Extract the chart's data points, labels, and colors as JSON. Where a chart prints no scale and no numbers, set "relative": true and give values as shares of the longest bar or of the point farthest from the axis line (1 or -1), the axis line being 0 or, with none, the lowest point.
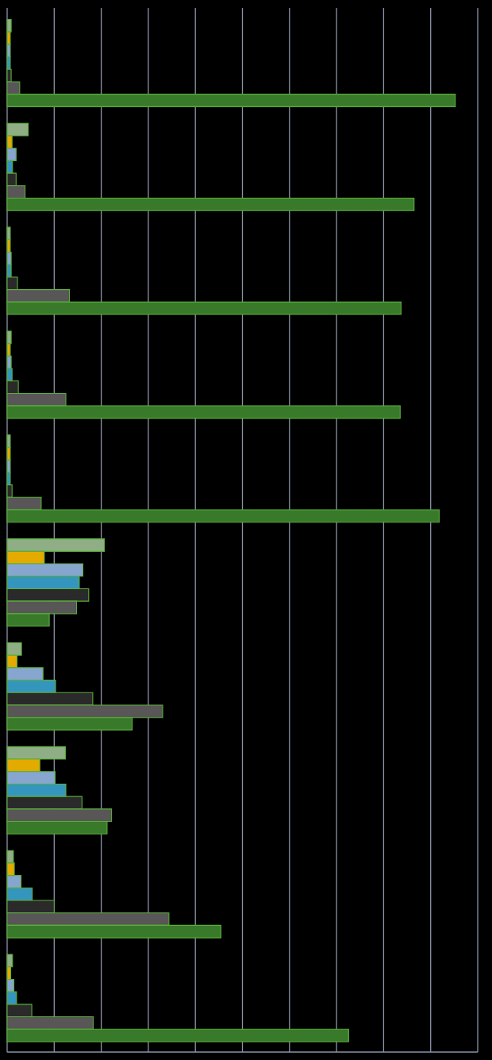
{
  "chart_data": {
    "type": "bar",
    "orientation": "horizontal",
    "relative": true,
    "grid": "x",
    "categories": [
      null,
      null,
      null,
      null,
      null,
      null,
      null,
      null,
      null,
      null
    ],
    "series": [
      {
        "color": "#8fae86",
        "values": [
          0.009,
          0.047,
          0.007,
          0.009,
          0.007,
          0.217,
          0.032,
          0.13,
          0.014,
          0.012
        ]
      },
      {
        "color": "#e3aa00",
        "values": [
          0.007,
          0.011,
          0.007,
          0.007,
          0.007,
          0.083,
          0.022,
          0.073,
          0.016,
          0.008
        ]
      },
      {
        "color": "#86a6cf",
        "values": [
          0.007,
          0.02,
          0.009,
          0.009,
          0.007,
          0.169,
          0.08,
          0.107,
          0.031,
          0.015
        ]
      },
      {
        "color": "#3596bd",
        "values": [
          0.007,
          0.012,
          0.009,
          0.011,
          0.007,
          0.161,
          0.108,
          0.131,
          0.056,
          0.021
        ]
      },
      {
        "color": "#2b2a2b",
        "values": [
          0.009,
          0.02,
          0.023,
          0.025,
          0.011,
          0.182,
          0.191,
          0.167,
          0.105,
          0.055
        ]
      },
      {
        "color": "#595657",
        "values": [
          0.028,
          0.04,
          0.139,
          0.131,
          0.076,
          0.155,
          0.347,
          0.233,
          0.361,
          0.192
        ]
      },
      {
        "color": "#387a2a",
        "values": [
          1,
          0.908,
          0.879,
          0.877,
          0.964,
          0.094,
          0.279,
          0.223,
          0.477,
          0.762
        ]
      }
    ]
  }
}
